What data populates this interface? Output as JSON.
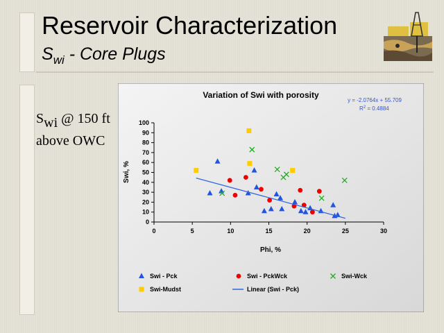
{
  "slide": {
    "title": "Reservoir Characterization",
    "subtitle_main": "S",
    "subtitle_sub": "wi",
    "subtitle_rest": " - Core Plugs",
    "side_text_s": "S",
    "side_text_sub": "wi",
    "side_text_rest": " @ 150 ft above OWC"
  },
  "colors": {
    "pck": "#2255dd",
    "pckwck": "#ee0000",
    "wck": "#22aa22",
    "mudst": "#ffcc00",
    "trend": "#3366dd"
  },
  "chart_data": {
    "type": "scatter",
    "title": "Variation of Swi with porosity",
    "xlabel": "Phi, %",
    "ylabel": "Swi, %",
    "xlim": [
      0,
      30
    ],
    "ylim": [
      0,
      100
    ],
    "xticks": [
      0,
      5,
      10,
      15,
      20,
      25,
      30
    ],
    "yticks": [
      0,
      10,
      20,
      30,
      40,
      50,
      60,
      70,
      80,
      90,
      100
    ],
    "grid": false,
    "legend": "bottom",
    "trend_equation": "y = -2.0764x + 55.709",
    "trend_r2_label": "R",
    "trend_r2_sup": "2",
    "trend_r2_value": " = 0.4884",
    "series": [
      {
        "name": "Swi - Pck",
        "marker": "triangle",
        "points": [
          [
            7.3,
            29
          ],
          [
            8.3,
            61
          ],
          [
            8.8,
            31
          ],
          [
            12.3,
            29
          ],
          [
            13.1,
            52
          ],
          [
            13.4,
            35
          ],
          [
            14.4,
            11
          ],
          [
            15.3,
            13
          ],
          [
            16.0,
            28
          ],
          [
            16.5,
            24
          ],
          [
            16.7,
            13
          ],
          [
            18.4,
            20
          ],
          [
            19.2,
            11
          ],
          [
            19.8,
            10
          ],
          [
            20.4,
            14
          ],
          [
            21.8,
            11
          ],
          [
            23.4,
            17
          ],
          [
            23.6,
            6
          ],
          [
            24.0,
            7
          ]
        ]
      },
      {
        "name": "Swi - PckWck",
        "marker": "circle",
        "points": [
          [
            9.9,
            42
          ],
          [
            10.6,
            27
          ],
          [
            12.0,
            45
          ],
          [
            14.0,
            33
          ],
          [
            15.1,
            22
          ],
          [
            18.3,
            16
          ],
          [
            19.1,
            32
          ],
          [
            19.6,
            17
          ],
          [
            20.7,
            10
          ],
          [
            21.6,
            31
          ]
        ]
      },
      {
        "name": "Swi-Wck",
        "marker": "x",
        "points": [
          [
            8.9,
            29
          ],
          [
            12.8,
            73
          ],
          [
            16.1,
            53
          ],
          [
            16.9,
            45
          ],
          [
            17.3,
            48
          ],
          [
            21.9,
            24
          ],
          [
            24.9,
            42
          ]
        ]
      },
      {
        "name": "Swi-Mudst",
        "marker": "square",
        "points": [
          [
            5.5,
            52
          ],
          [
            12.4,
            92
          ],
          [
            12.5,
            59
          ],
          [
            18.1,
            52
          ]
        ]
      }
    ],
    "trend": {
      "name": "Linear (Swi - Pck)",
      "slope": -2.0764,
      "intercept": 55.709,
      "x_range": [
        5.5,
        25
      ]
    }
  }
}
